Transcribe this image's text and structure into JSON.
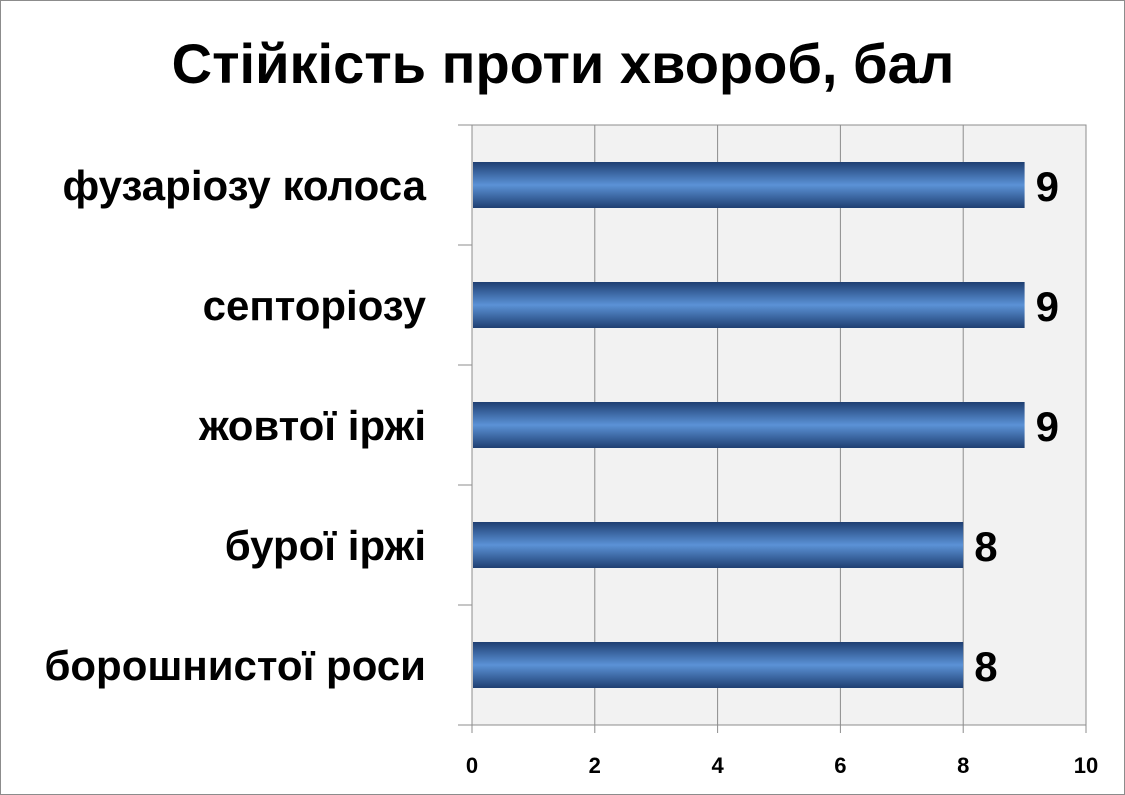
{
  "chart_data": {
    "type": "bar",
    "orientation": "horizontal",
    "title": "Стійкість проти хвороб, бал",
    "xlabel": "",
    "ylabel": "",
    "categories": [
      "фузаріозу колоса",
      "септоріозу",
      "жовтої іржі",
      "бурої іржі",
      "борошнистої роси"
    ],
    "values": [
      9,
      9,
      9,
      8,
      8
    ],
    "data_labels": [
      "9",
      "9",
      "9",
      "8",
      "8"
    ],
    "xlim": [
      0,
      10
    ],
    "x_ticks": [
      0,
      2,
      4,
      6,
      8,
      10
    ],
    "x_tick_labels": [
      "0",
      "2",
      "4",
      "6",
      "8",
      "10"
    ],
    "grid": "vertical",
    "legend": "none",
    "colors": {
      "bar_dark": "#1f3f72",
      "bar_light": "#5b92d6",
      "plot_background": "#f2f2f2",
      "gridline": "#8c8c8c"
    }
  }
}
